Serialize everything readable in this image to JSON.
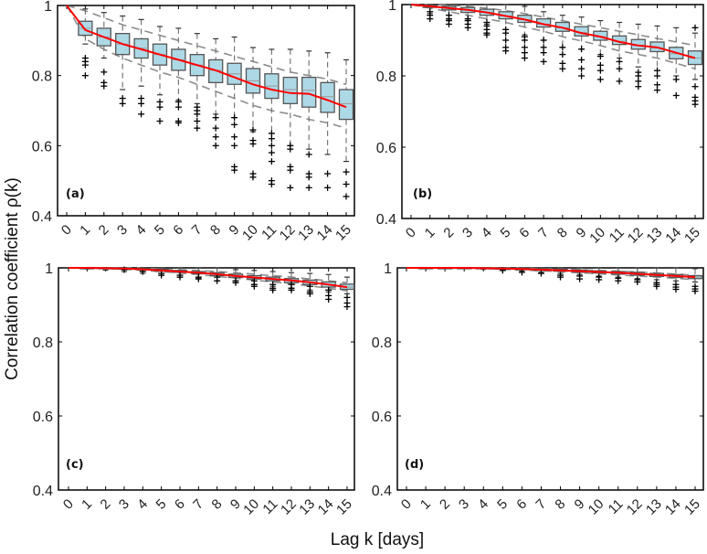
{
  "figure": {
    "ylabel": "Correlation coefficient ρ(k)",
    "xlabel": "Lag k [days]"
  },
  "colors": {
    "box_fill": "#add8e6",
    "box_edge": "#555555",
    "mean_line": "#ff0000",
    "envelope": "#8c8c8c",
    "outlier": "#000000",
    "frame": "#000000"
  },
  "chart_data": [
    {
      "type": "box",
      "panel_label": "(a)",
      "title": "",
      "xlabel": "Lag k [days]",
      "ylabel": "Correlation coefficient ρ(k)",
      "categories": [
        "0",
        "1",
        "2",
        "3",
        "4",
        "5",
        "6",
        "7",
        "8",
        "9",
        "10",
        "11",
        "12",
        "13",
        "14",
        "15"
      ],
      "yticks": [
        "0.4",
        "0.6",
        "0.8",
        "1"
      ],
      "ylim": [
        0.4,
        1.0
      ],
      "mean": [
        1.0,
        0.93,
        0.91,
        0.89,
        0.875,
        0.86,
        0.845,
        0.83,
        0.815,
        0.795,
        0.775,
        0.76,
        0.75,
        0.748,
        0.73,
        0.71
      ],
      "q1": [
        1.0,
        0.915,
        0.885,
        0.86,
        0.85,
        0.83,
        0.815,
        0.8,
        0.78,
        0.775,
        0.75,
        0.735,
        0.72,
        0.71,
        0.695,
        0.675
      ],
      "median": [
        1.0,
        0.935,
        0.91,
        0.89,
        0.878,
        0.86,
        0.845,
        0.83,
        0.815,
        0.805,
        0.785,
        0.77,
        0.76,
        0.758,
        0.74,
        0.72
      ],
      "q3": [
        1.0,
        0.955,
        0.935,
        0.92,
        0.905,
        0.89,
        0.875,
        0.86,
        0.845,
        0.835,
        0.82,
        0.805,
        0.795,
        0.795,
        0.78,
        0.76
      ],
      "whisker_low": [
        1.0,
        0.89,
        0.85,
        0.76,
        0.77,
        0.745,
        0.73,
        0.72,
        0.69,
        0.68,
        0.64,
        0.635,
        0.6,
        0.59,
        0.575,
        0.555
      ],
      "whisker_high": [
        1.0,
        0.99,
        0.98,
        0.97,
        0.96,
        0.94,
        0.935,
        0.92,
        0.905,
        0.91,
        0.88,
        0.875,
        0.875,
        0.87,
        0.865,
        0.845
      ],
      "outliers": [
        [],
        [
          0.85,
          0.84,
          0.83,
          0.8
        ],
        [
          0.81,
          0.78,
          0.77
        ],
        [
          0.735,
          0.72
        ],
        [
          0.735,
          0.72,
          0.69
        ],
        [
          0.725,
          0.71,
          0.67
        ],
        [
          0.725,
          0.71,
          0.67,
          0.665
        ],
        [
          0.71,
          0.7,
          0.69,
          0.67,
          0.65
        ],
        [
          0.68,
          0.65,
          0.625,
          0.6
        ],
        [
          0.68,
          0.66,
          0.625,
          0.6,
          0.54,
          0.53
        ],
        [
          0.645,
          0.615,
          0.605,
          0.52,
          0.51
        ],
        [
          0.635,
          0.62,
          0.6,
          0.58,
          0.555,
          0.5,
          0.49
        ],
        [
          0.6,
          0.59,
          0.54,
          0.53,
          0.48
        ],
        [
          0.575,
          0.52,
          0.51,
          0.48
        ],
        [
          0.52,
          0.48
        ],
        [
          0.525,
          0.49,
          0.455
        ]
      ],
      "envelope_upper": [
        1.0,
        0.985,
        0.965,
        0.945,
        0.93,
        0.915,
        0.9,
        0.885,
        0.87,
        0.855,
        0.84,
        0.825,
        0.81,
        0.8,
        0.79,
        0.775
      ],
      "envelope_lower": [
        1.0,
        0.905,
        0.875,
        0.85,
        0.83,
        0.81,
        0.795,
        0.775,
        0.755,
        0.735,
        0.715,
        0.7,
        0.69,
        0.675,
        0.665,
        0.65
      ]
    },
    {
      "type": "box",
      "panel_label": "(b)",
      "title": "",
      "xlabel": "Lag k [days]",
      "ylabel": "Correlation coefficient ρ(k)",
      "categories": [
        "0",
        "1",
        "2",
        "3",
        "4",
        "5",
        "6",
        "7",
        "8",
        "9",
        "10",
        "11",
        "12",
        "13",
        "14",
        "15"
      ],
      "yticks": [
        "0.4",
        "0.6",
        "0.8",
        "1"
      ],
      "ylim": [
        0.4,
        1.0
      ],
      "mean": [
        1.0,
        0.995,
        0.99,
        0.985,
        0.978,
        0.968,
        0.958,
        0.945,
        0.935,
        0.92,
        0.91,
        0.895,
        0.885,
        0.88,
        0.865,
        0.85
      ],
      "q1": [
        1.0,
        0.992,
        0.985,
        0.978,
        0.97,
        0.96,
        0.95,
        0.937,
        0.925,
        0.912,
        0.9,
        0.888,
        0.875,
        0.868,
        0.848,
        0.832
      ],
      "median": [
        1.0,
        0.995,
        0.99,
        0.985,
        0.978,
        0.968,
        0.958,
        0.945,
        0.935,
        0.922,
        0.91,
        0.897,
        0.885,
        0.878,
        0.862,
        0.85
      ],
      "q3": [
        1.0,
        0.998,
        0.995,
        0.992,
        0.987,
        0.98,
        0.97,
        0.96,
        0.95,
        0.938,
        0.925,
        0.912,
        0.902,
        0.895,
        0.88,
        0.87
      ],
      "whisker_low": [
        1.0,
        0.975,
        0.96,
        0.955,
        0.945,
        0.93,
        0.915,
        0.9,
        0.88,
        0.875,
        0.86,
        0.85,
        0.825,
        0.815,
        0.8,
        0.79
      ],
      "whisker_high": [
        1.0,
        1.0,
        1.0,
        1.0,
        1.0,
        1.0,
        0.995,
        0.98,
        0.97,
        0.965,
        0.955,
        0.95,
        0.945,
        0.94,
        0.935,
        0.92
      ],
      "outliers": [
        [],
        [
          0.98,
          0.97,
          0.96
        ],
        [
          0.97,
          0.96,
          0.955,
          0.945
        ],
        [
          0.96,
          0.955,
          0.945,
          0.935
        ],
        [
          0.95,
          0.94,
          0.93,
          0.92,
          0.915
        ],
        [
          0.93,
          0.92,
          0.9,
          0.88,
          0.87
        ],
        [
          0.91,
          0.9,
          0.88,
          0.865,
          0.85
        ],
        [
          0.9,
          0.88,
          0.865,
          0.84
        ],
        [
          0.88,
          0.86,
          0.835,
          0.82
        ],
        [
          0.875,
          0.845,
          0.82,
          0.8
        ],
        [
          0.855,
          0.83,
          0.815,
          0.79
        ],
        [
          0.84,
          0.82,
          0.785
        ],
        [
          0.81,
          0.8,
          0.785,
          0.77
        ],
        [
          0.815,
          0.8,
          0.775,
          0.76
        ],
        [
          0.79,
          0.745
        ],
        [
          0.935,
          0.77,
          0.74,
          0.73,
          0.72
        ]
      ],
      "envelope_upper": [
        1.0,
        1.0,
        0.998,
        0.995,
        0.99,
        0.983,
        0.975,
        0.965,
        0.955,
        0.945,
        0.935,
        0.925,
        0.915,
        0.905,
        0.895,
        0.885
      ],
      "envelope_lower": [
        1.0,
        0.99,
        0.98,
        0.97,
        0.96,
        0.95,
        0.937,
        0.925,
        0.91,
        0.898,
        0.885,
        0.87,
        0.86,
        0.85,
        0.835,
        0.82
      ]
    },
    {
      "type": "box",
      "panel_label": "(c)",
      "title": "",
      "xlabel": "Lag k [days]",
      "ylabel": "Correlation coefficient ρ(k)",
      "categories": [
        "0",
        "1",
        "2",
        "3",
        "4",
        "5",
        "6",
        "7",
        "8",
        "9",
        "10",
        "11",
        "12",
        "13",
        "14",
        "15"
      ],
      "yticks": [
        "0.4",
        "0.6",
        "0.8",
        "1"
      ],
      "ylim": [
        0.4,
        1.0
      ],
      "mean": [
        1.0,
        1.0,
        0.999,
        0.998,
        0.996,
        0.993,
        0.99,
        0.987,
        0.983,
        0.978,
        0.974,
        0.97,
        0.966,
        0.961,
        0.955,
        0.948
      ],
      "q1": [
        1.0,
        0.999,
        0.998,
        0.997,
        0.995,
        0.991,
        0.988,
        0.984,
        0.979,
        0.974,
        0.97,
        0.965,
        0.96,
        0.955,
        0.948,
        0.942
      ],
      "median": [
        1.0,
        1.0,
        0.999,
        0.998,
        0.996,
        0.993,
        0.99,
        0.987,
        0.983,
        0.978,
        0.974,
        0.97,
        0.966,
        0.961,
        0.955,
        0.948
      ],
      "q3": [
        1.0,
        1.0,
        1.0,
        0.999,
        0.998,
        0.996,
        0.993,
        0.99,
        0.987,
        0.983,
        0.979,
        0.975,
        0.971,
        0.967,
        0.962,
        0.956
      ],
      "whisker_low": [
        1.0,
        0.997,
        0.994,
        0.99,
        0.985,
        0.98,
        0.975,
        0.972,
        0.965,
        0.96,
        0.955,
        0.95,
        0.945,
        0.94,
        0.935,
        0.93
      ],
      "whisker_high": [
        1.0,
        1.0,
        1.0,
        1.0,
        1.0,
        1.0,
        1.0,
        1.0,
        1.0,
        0.995,
        0.993,
        0.99,
        0.987,
        0.985,
        0.982,
        0.975
      ],
      "outliers": [
        [],
        [],
        [],
        [
          0.995
        ],
        [
          0.99
        ],
        [
          0.985,
          0.98
        ],
        [
          0.98,
          0.975
        ],
        [
          0.975,
          0.97
        ],
        [
          0.975,
          0.965
        ],
        [
          0.965,
          0.96
        ],
        [
          0.965,
          0.955,
          0.95
        ],
        [
          0.955,
          0.945,
          0.94
        ],
        [
          0.955,
          0.945,
          0.94
        ],
        [
          0.95,
          0.935,
          0.93
        ],
        [
          0.94,
          0.925,
          0.915
        ],
        [
          0.92,
          0.905,
          0.895
        ]
      ],
      "envelope_upper": [
        1.0,
        1.0,
        1.0,
        1.0,
        0.999,
        0.997,
        0.995,
        0.993,
        0.99,
        0.987,
        0.983,
        0.979,
        0.975,
        0.97,
        0.965,
        0.96
      ],
      "envelope_lower": [
        1.0,
        0.999,
        0.998,
        0.996,
        0.993,
        0.99,
        0.986,
        0.982,
        0.977,
        0.972,
        0.967,
        0.962,
        0.957,
        0.951,
        0.945,
        0.938
      ]
    },
    {
      "type": "box",
      "panel_label": "(d)",
      "title": "",
      "xlabel": "Lag k [days]",
      "ylabel": "Correlation coefficient ρ(k)",
      "categories": [
        "0",
        "1",
        "2",
        "3",
        "4",
        "5",
        "6",
        "7",
        "8",
        "9",
        "10",
        "11",
        "12",
        "13",
        "14",
        "15"
      ],
      "yticks": [
        "0.4",
        "0.6",
        "0.8",
        "1"
      ],
      "ylim": [
        0.4,
        1.0
      ],
      "mean": [
        1.0,
        1.0,
        1.0,
        1.0,
        0.999,
        0.998,
        0.997,
        0.995,
        0.993,
        0.991,
        0.989,
        0.987,
        0.984,
        0.981,
        0.978,
        0.975
      ],
      "q1": [
        1.0,
        1.0,
        1.0,
        0.999,
        0.998,
        0.997,
        0.995,
        0.993,
        0.991,
        0.988,
        0.986,
        0.983,
        0.98,
        0.977,
        0.974,
        0.971
      ],
      "median": [
        1.0,
        1.0,
        1.0,
        1.0,
        0.999,
        0.998,
        0.997,
        0.995,
        0.993,
        0.991,
        0.989,
        0.987,
        0.984,
        0.981,
        0.978,
        0.975
      ],
      "q3": [
        1.0,
        1.0,
        1.0,
        1.0,
        1.0,
        0.999,
        0.999,
        0.998,
        0.996,
        0.994,
        0.992,
        0.99,
        0.988,
        0.985,
        0.982,
        0.979
      ],
      "whisker_low": [
        1.0,
        1.0,
        0.999,
        0.998,
        0.996,
        0.994,
        0.991,
        0.988,
        0.985,
        0.982,
        0.978,
        0.975,
        0.971,
        0.968,
        0.965,
        0.962
      ],
      "whisker_high": [
        1.0,
        1.0,
        1.0,
        1.0,
        1.0,
        1.0,
        1.0,
        1.0,
        1.0,
        1.0,
        1.0,
        1.0,
        1.0,
        1.0,
        1.0,
        0.998
      ],
      "outliers": [
        [],
        [],
        [],
        [],
        [],
        [
          0.993
        ],
        [
          0.988
        ],
        [
          0.985
        ],
        [
          0.98,
          0.975
        ],
        [
          0.978,
          0.97
        ],
        [
          0.975,
          0.968
        ],
        [
          0.972,
          0.965
        ],
        [
          0.968,
          0.962
        ],
        [
          0.96,
          0.955,
          0.95
        ],
        [
          0.955,
          0.948,
          0.942
        ],
        [
          0.95,
          0.943,
          0.937
        ]
      ],
      "envelope_upper": [
        1.0,
        1.0,
        1.0,
        1.0,
        1.0,
        1.0,
        0.999,
        0.998,
        0.997,
        0.995,
        0.993,
        0.991,
        0.989,
        0.986,
        0.983,
        0.98
      ],
      "envelope_lower": [
        1.0,
        1.0,
        0.999,
        0.999,
        0.998,
        0.996,
        0.994,
        0.992,
        0.99,
        0.987,
        0.984,
        0.981,
        0.978,
        0.975,
        0.972,
        0.968
      ]
    }
  ]
}
